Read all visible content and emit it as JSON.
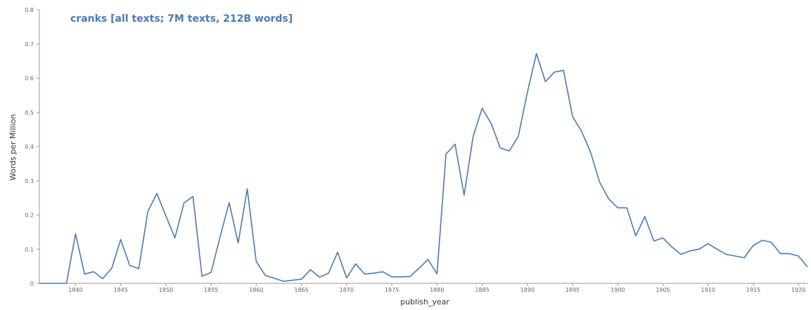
{
  "chart_data": {
    "type": "line",
    "title": "cranks [all texts; 7M texts, 212B words]",
    "xlabel": "publish_year",
    "ylabel": "Words per Million",
    "xlim": [
      1836,
      1921
    ],
    "ylim": [
      0,
      0.8
    ],
    "x_ticks": [
      1840,
      1845,
      1850,
      1855,
      1860,
      1865,
      1870,
      1875,
      1880,
      1885,
      1890,
      1895,
      1900,
      1905,
      1910,
      1915,
      1920
    ],
    "y_ticks": [
      0,
      0.1,
      0.2,
      0.3,
      0.4,
      0.5,
      0.6,
      0.7,
      0.8
    ],
    "y_tick_labels": [
      "0",
      "0.1",
      "0.2",
      "0.3",
      "0.4",
      "0.5",
      "0.6",
      "0.7",
      "0.8"
    ],
    "grid": false,
    "colors": {
      "series": "#4a79b5",
      "title": "#4a79b5",
      "axis": "#999999"
    },
    "x": [
      1836,
      1837,
      1838,
      1839,
      1840,
      1841,
      1842,
      1843,
      1844,
      1845,
      1846,
      1847,
      1848,
      1849,
      1850,
      1851,
      1852,
      1853,
      1854,
      1855,
      1856,
      1857,
      1858,
      1859,
      1860,
      1861,
      1862,
      1863,
      1864,
      1865,
      1866,
      1867,
      1868,
      1869,
      1870,
      1871,
      1872,
      1873,
      1874,
      1875,
      1876,
      1877,
      1878,
      1879,
      1880,
      1881,
      1882,
      1883,
      1884,
      1885,
      1886,
      1887,
      1888,
      1889,
      1890,
      1891,
      1892,
      1893,
      1894,
      1895,
      1896,
      1897,
      1898,
      1899,
      1900,
      1901,
      1902,
      1903,
      1904,
      1905,
      1906,
      1907,
      1908,
      1909,
      1910,
      1911,
      1912,
      1913,
      1914,
      1915,
      1916,
      1917,
      1918,
      1919,
      1920,
      1921
    ],
    "series": [
      {
        "values": [
          0,
          0,
          0,
          0,
          0.145,
          0.027,
          0.034,
          0.014,
          0.044,
          0.128,
          0.052,
          0.043,
          0.21,
          0.263,
          0.197,
          0.133,
          0.235,
          0.254,
          0.021,
          0.032,
          0.136,
          0.236,
          0.118,
          0.276,
          0.064,
          0.023,
          0.015,
          0.006,
          0.009,
          0.012,
          0.04,
          0.018,
          0.03,
          0.091,
          0.016,
          0.057,
          0.027,
          0.03,
          0.034,
          0.019,
          0.019,
          0.02,
          0.044,
          0.07,
          0.028,
          0.378,
          0.407,
          0.258,
          0.43,
          0.512,
          0.467,
          0.396,
          0.387,
          0.43,
          0.558,
          0.672,
          0.59,
          0.618,
          0.623,
          0.488,
          0.445,
          0.383,
          0.296,
          0.247,
          0.221,
          0.221,
          0.139,
          0.195,
          0.124,
          0.133,
          0.106,
          0.085,
          0.095,
          0.1,
          0.116,
          0.1,
          0.085,
          0.08,
          0.075,
          0.111,
          0.126,
          0.12,
          0.087,
          0.087,
          0.08,
          0.048
        ]
      }
    ]
  }
}
